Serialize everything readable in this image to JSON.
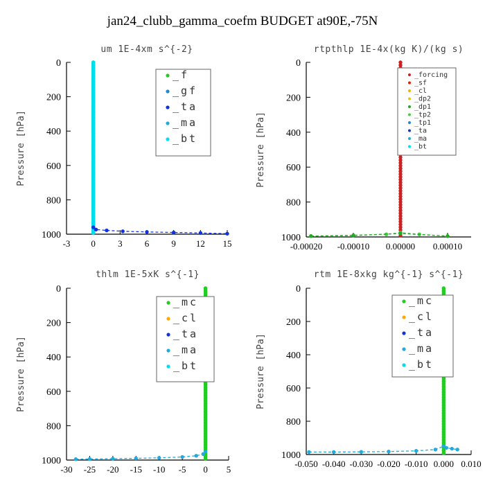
{
  "title": "jan24_clubb_gamma_coefm  BUDGET at90E,-75N",
  "colors": {
    "f": "#22cc22",
    "gf": "#2288cc",
    "ta": "#1133dd",
    "ma": "#22aadd",
    "bt": "#00ddee",
    "forcing": "#cc2222",
    "sf": "#dd2200",
    "cl": "#ffaa00",
    "dp2": "#ddcc00",
    "dp1": "#22aa22",
    "tp2": "#44cc44",
    "tp1": "#2288cc",
    "mc": "#22cc22"
  },
  "chart_data": [
    {
      "type": "line",
      "title": "um  1E-4xm s^{-2}",
      "ylabel": "Pressure [hPa]",
      "xlim": [
        -3,
        15
      ],
      "ylim": [
        1000,
        0
      ],
      "xticks": [
        "-3",
        "0",
        "3",
        "6",
        "9",
        "12",
        "15"
      ],
      "yticks": [
        "0",
        "200",
        "400",
        "600",
        "800",
        "1000"
      ],
      "legend": [
        "_f",
        "_gf",
        "_ta",
        "_ma",
        "_bt"
      ],
      "legend_placement": "top-right",
      "series": [
        {
          "name": "_f",
          "color_key": "f",
          "x": [
            0,
            0,
            0,
            0,
            0,
            0,
            0,
            0,
            0,
            0,
            0
          ],
          "y": [
            0,
            100,
            200,
            300,
            400,
            500,
            600,
            700,
            800,
            900,
            1000
          ]
        },
        {
          "name": "_bt",
          "color_key": "bt",
          "x": [
            0,
            0,
            0,
            0,
            0,
            0,
            0,
            0,
            0,
            0,
            0
          ],
          "y": [
            0,
            100,
            200,
            300,
            400,
            500,
            600,
            700,
            800,
            900,
            1000
          ]
        },
        {
          "name": "_ta",
          "color_key": "ta",
          "x": [
            0,
            0.3,
            1.5,
            3.3,
            6.0,
            9.0,
            12.0,
            15.0
          ],
          "y": [
            960,
            973,
            978,
            983,
            987,
            990,
            993,
            997
          ]
        }
      ]
    },
    {
      "type": "line",
      "title": "rtpthlp  1E-4x(kg K)/(kg s)",
      "ylabel": "Pressure [hPa]",
      "xlim": [
        -0.0002,
        0.00015
      ],
      "ylim": [
        1000,
        0
      ],
      "xticks": [
        "-0.00020",
        "-0.00010",
        "0.00000",
        "0.00010"
      ],
      "xtick_values": [
        -0.0002,
        -0.0001,
        0,
        0.0001
      ],
      "yticks": [
        "0",
        "200",
        "400",
        "600",
        "800",
        "1000"
      ],
      "legend": [
        "_forcing",
        "_sf",
        "_cl",
        "_dp2",
        "_dp1",
        "_tp2",
        "_tp1",
        "_ta",
        "_ma",
        "_bt"
      ],
      "legend_placement": "top-right",
      "series": [
        {
          "name": "_forcing",
          "color_key": "forcing",
          "x": [
            0,
            0,
            0,
            0,
            0,
            0,
            0,
            0,
            0,
            0,
            0
          ],
          "y": [
            0,
            100,
            200,
            300,
            400,
            500,
            600,
            700,
            800,
            900,
            1000
          ]
        },
        {
          "name": "_tp2",
          "color_key": "tp2",
          "x": [
            -0.00019,
            -0.0001,
            -3e-05,
            0,
            4e-05,
            0.0001
          ],
          "y": [
            995,
            990,
            985,
            975,
            985,
            995
          ]
        },
        {
          "name": "_dp1",
          "color_key": "dp1",
          "x": [
            -0.00019,
            -0.0001,
            0,
            0.0001
          ],
          "y": [
            995,
            992,
            980,
            995
          ]
        }
      ]
    },
    {
      "type": "line",
      "title": "thlm  1E-5xK s^{-1}",
      "ylabel": "Pressure [hPa]",
      "xlim": [
        -30,
        5
      ],
      "ylim": [
        1000,
        0
      ],
      "xticks": [
        "-30",
        "-25",
        "-20",
        "-15",
        "-10",
        "-5",
        "0",
        "5"
      ],
      "yticks": [
        "0",
        "200",
        "400",
        "600",
        "800",
        "1000"
      ],
      "legend": [
        "_mc",
        "_cl",
        "_ta",
        "_ma",
        "_bt"
      ],
      "legend_placement": "top-right",
      "series": [
        {
          "name": "_mc",
          "color_key": "mc",
          "x": [
            0,
            0,
            0,
            0,
            0,
            0,
            0,
            0,
            0,
            0,
            0
          ],
          "y": [
            0,
            100,
            200,
            300,
            400,
            500,
            600,
            700,
            800,
            900,
            1000
          ]
        },
        {
          "name": "_ma",
          "color_key": "ma",
          "x": [
            -28,
            -25,
            -20,
            -15,
            -10,
            -5,
            -2,
            -0.5,
            0
          ],
          "y": [
            995,
            994,
            992,
            990,
            987,
            982,
            975,
            965,
            950
          ]
        }
      ]
    },
    {
      "type": "line",
      "title": "rtm  1E-8xkg kg^{-1} s^{-1}",
      "ylabel": "Pressure [hPa]",
      "xlim": [
        -0.05,
        0.01
      ],
      "ylim": [
        1000,
        0
      ],
      "xticks": [
        "-0.050",
        "-0.040",
        "-0.030",
        "-0.020",
        "-0.010",
        "0.000",
        "0.010"
      ],
      "xtick_values": [
        -0.05,
        -0.04,
        -0.03,
        -0.02,
        -0.01,
        0,
        0.01
      ],
      "yticks": [
        "0",
        "200",
        "400",
        "600",
        "800",
        "1000"
      ],
      "legend": [
        "_mc",
        "_cl",
        "_ta",
        "_ma",
        "_bt"
      ],
      "legend_placement": "top-right",
      "series": [
        {
          "name": "_mc",
          "color_key": "mc",
          "x": [
            0,
            0,
            0,
            0,
            0,
            0,
            0,
            0,
            0,
            0,
            0
          ],
          "y": [
            0,
            100,
            200,
            300,
            400,
            500,
            600,
            700,
            800,
            900,
            1000
          ]
        },
        {
          "name": "_ma",
          "color_key": "ma",
          "x": [
            -0.049,
            -0.04,
            -0.03,
            -0.02,
            -0.01,
            -0.003,
            0,
            0.001,
            0.003,
            0.005
          ],
          "y": [
            985,
            985,
            984,
            982,
            978,
            970,
            950,
            960,
            965,
            970
          ]
        }
      ]
    }
  ]
}
